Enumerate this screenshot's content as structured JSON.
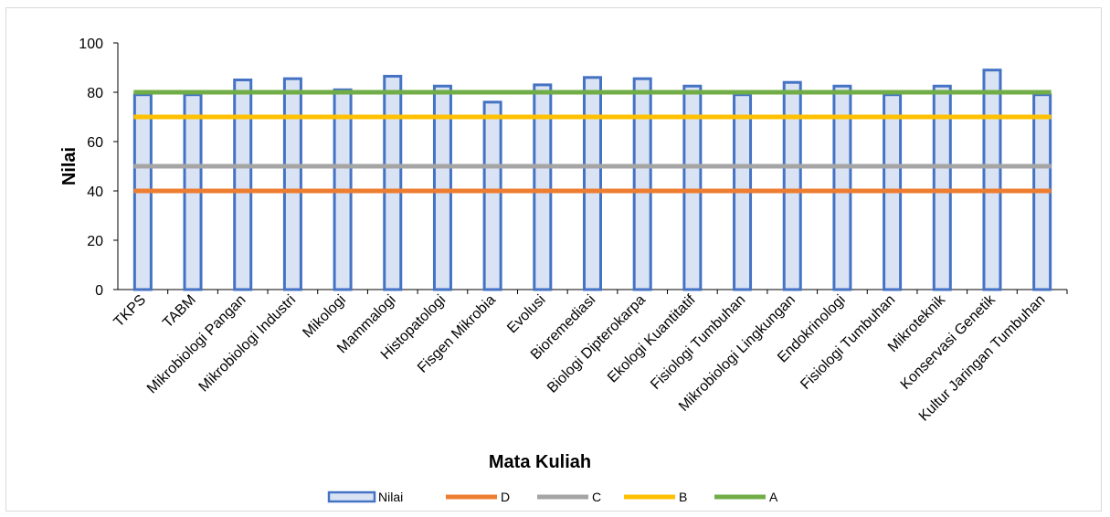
{
  "chart_data": {
    "type": "bar",
    "xlabel": "Mata Kuliah",
    "ylabel": "Nilai",
    "ylim": [
      0,
      100
    ],
    "yticks": [
      0,
      20,
      40,
      60,
      80,
      100
    ],
    "grid": false,
    "legend_position": "bottom",
    "categories": [
      "TKPS",
      "TABM",
      "Mikrobiologi Pangan",
      "Mikrobiologi Industri",
      "Mikologi",
      "Mammalogi",
      "Histopatologi",
      "Fisgen Mikrobia",
      "Evolusi",
      "Bioremediasi",
      "Biologi Dipterokarpa",
      "Ekologi Kuantitatif",
      "Fisiologi Tumbuhan",
      "Mikrobiologi Lingkungan",
      "Endokrinologi",
      "Fisiologi Tumbuhan",
      "Mikroteknik",
      "Konservasi Genetik",
      "Kultur Jaringan Tumbuhan"
    ],
    "series": [
      {
        "name": "Nilai",
        "kind": "bar",
        "color": "#4472c4",
        "fill": "#dae3f3",
        "values": [
          79,
          79,
          85,
          85.5,
          81,
          86.5,
          82.5,
          76,
          83,
          86,
          85.5,
          82.5,
          79,
          84,
          82.5,
          79,
          82.5,
          89,
          79
        ]
      },
      {
        "name": "D",
        "kind": "line",
        "color": "#ed7d31",
        "value": 40
      },
      {
        "name": "C",
        "kind": "line",
        "color": "#a5a5a5",
        "value": 50
      },
      {
        "name": "B",
        "kind": "line",
        "color": "#ffc000",
        "value": 70
      },
      {
        "name": "A",
        "kind": "line",
        "color": "#70ad47",
        "value": 80
      }
    ]
  }
}
